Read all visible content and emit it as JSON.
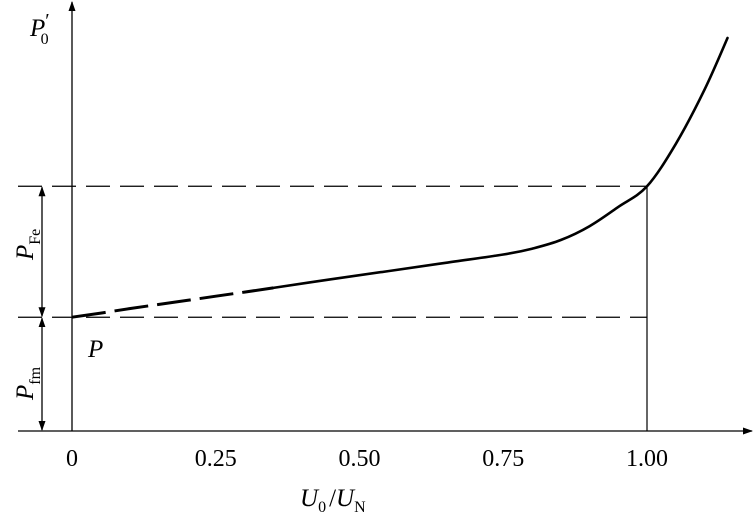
{
  "chart_data": {
    "type": "line",
    "xlabel": {
      "main": "U",
      "sub": "0",
      "sep": "/",
      "main2": "U",
      "sub2": "N"
    },
    "ylabel": {
      "main": "P",
      "sub": "0",
      "prime": "′"
    },
    "x_ticks": [
      "0",
      "0.25",
      "0.50",
      "0.75",
      "1.00"
    ],
    "x_tick_values": [
      0,
      0.25,
      0.5,
      0.75,
      1.0
    ],
    "xlim": [
      -0.05,
      1.18
    ],
    "ylim": [
      0,
      1.23
    ],
    "series": [
      {
        "dashed_part": {
          "x": [
            0,
            0.05,
            0.1,
            0.15,
            0.2,
            0.25,
            0.3,
            0.35
          ],
          "y": [
            0.33,
            0.342,
            0.355,
            0.367,
            0.379,
            0.391,
            0.403,
            0.415
          ]
        },
        "solid_part": {
          "x": [
            0.35,
            0.45,
            0.55,
            0.65,
            0.75,
            0.8,
            0.85,
            0.9,
            0.95,
            1.0,
            1.05,
            1.1,
            1.14
          ],
          "y": [
            0.415,
            0.44,
            0.464,
            0.488,
            0.512,
            0.529,
            0.554,
            0.594,
            0.65,
            0.71,
            0.833,
            0.99,
            1.14
          ]
        }
      }
    ],
    "reference_lines": {
      "y_Pfm": 0.33,
      "y_rated": 0.71,
      "x_rated": 1.0
    },
    "annotations": {
      "point_label": "P",
      "p_fe": {
        "main": "P",
        "sub": "Fe"
      },
      "p_fm": {
        "main": "P",
        "sub": "fm"
      }
    },
    "grid": false
  }
}
